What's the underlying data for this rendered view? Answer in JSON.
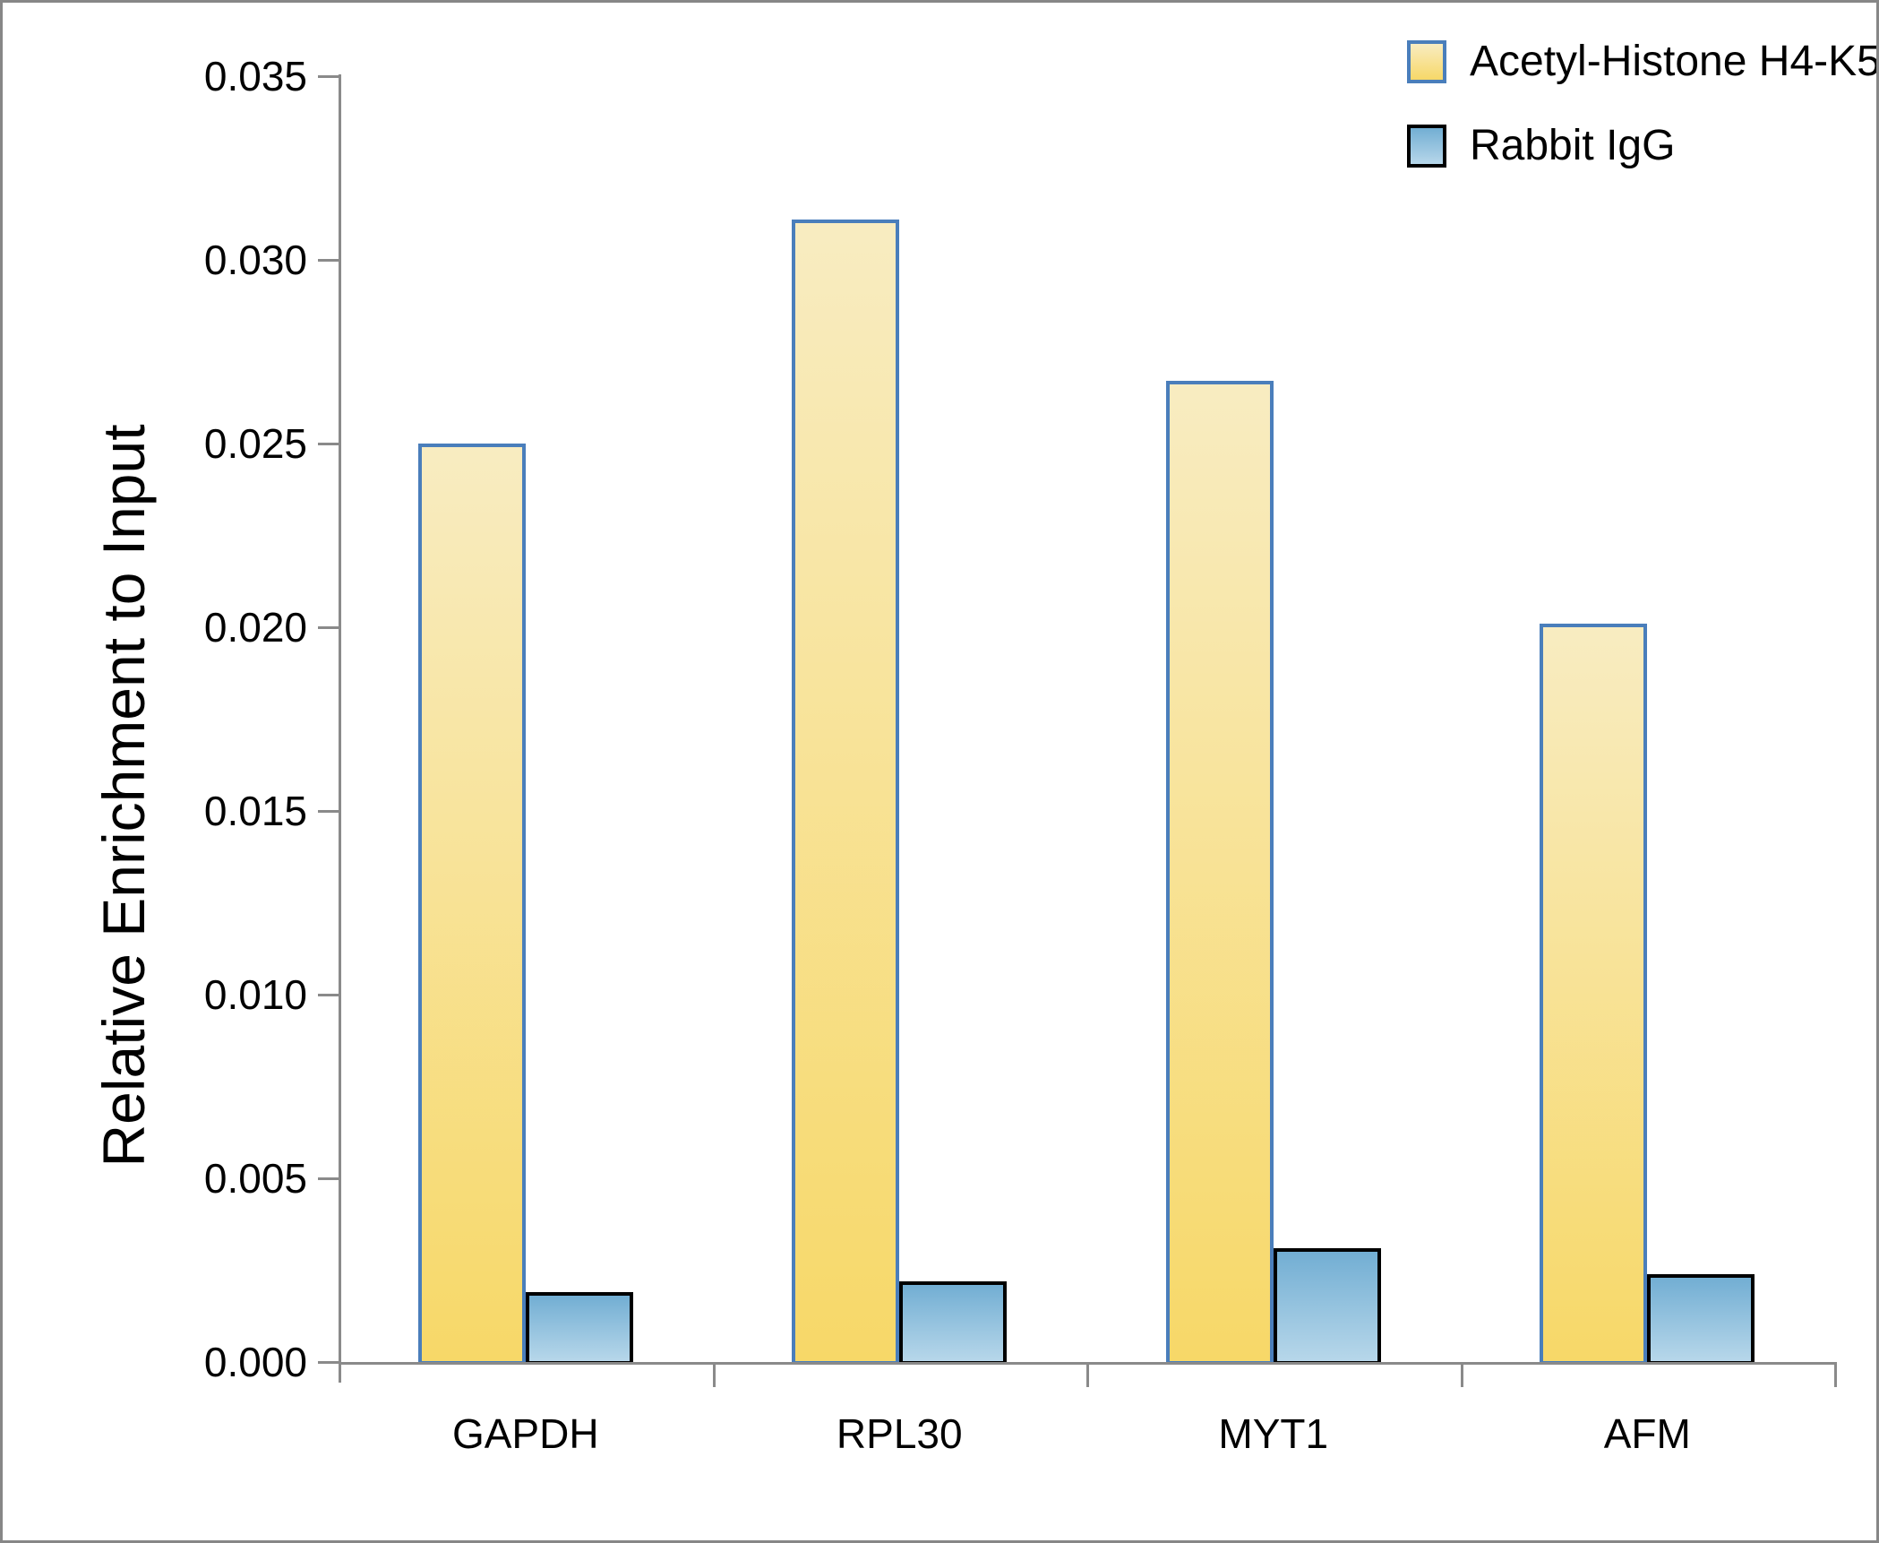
{
  "figure": {
    "background": "#FFFFFF",
    "border_color": "#878787",
    "axis_color": "#8A8A8A"
  },
  "chart_data": {
    "type": "bar",
    "title": "",
    "xlabel": "",
    "ylabel": "Relative Enrichment to Input",
    "categories": [
      "GAPDH",
      "RPL30",
      "MYT1",
      "AFM"
    ],
    "series": [
      {
        "name": "Acetyl-Histone H4-K5",
        "values": [
          0.025,
          0.0311,
          0.0267,
          0.0201
        ],
        "fill_top": "#F8ECC1",
        "fill_bottom": "#F7D868",
        "border": "#4A7EBB"
      },
      {
        "name": "Rabbit IgG",
        "values": [
          0.0019,
          0.0022,
          0.0031,
          0.0024
        ],
        "fill_top": "#72AED3",
        "fill_bottom": "#B7D7EA",
        "border": "#000000"
      }
    ],
    "ylim": [
      0,
      0.035
    ],
    "ytick_step": 0.005,
    "ytick_labels": [
      "0.000",
      "0.005",
      "0.010",
      "0.015",
      "0.020",
      "0.025",
      "0.030",
      "0.035"
    ],
    "grid": false,
    "legend_position": "top-right"
  }
}
